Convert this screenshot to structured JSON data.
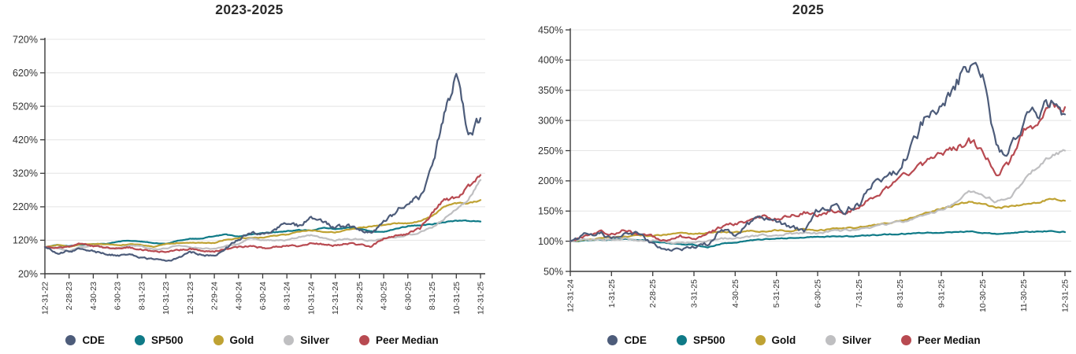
{
  "style": {
    "background": "#ffffff",
    "grid_color": "#e4e4e4",
    "axis_color": "#3a3a3a",
    "tick_text_color": "#333333",
    "title_color": "#2b2b2b",
    "series_colors": {
      "CDE": "#4d5c7a",
      "SP500": "#0f7a87",
      "Gold": "#bfa233",
      "Silver": "#bfbfc1",
      "Peer Median": "#b84a51"
    }
  },
  "chart_data": [
    {
      "type": "line",
      "title": "2023-2025",
      "grid": true,
      "legend_position": "bottom",
      "ylim": [
        20,
        720
      ],
      "y_ticks": [
        20,
        120,
        220,
        320,
        420,
        520,
        620,
        720
      ],
      "y_tick_suffix": "%",
      "x_tick_labels": [
        "12-31-22",
        "2-28-23",
        "4-30-23",
        "6-30-23",
        "8-31-23",
        "10-31-23",
        "12-31-23",
        "2-29-24",
        "4-30-24",
        "6-30-24",
        "8-31-24",
        "10-31-24",
        "12-31-24",
        "2-28-25",
        "4-30-25",
        "6-30-25",
        "8-31-25",
        "10-31-25",
        "12-31-25"
      ],
      "points_interval": "monthly, 12-31-22 through 12-31-25, values are % of 12-31-22 level",
      "series": [
        {
          "name": "CDE",
          "color": "#4d5c7a",
          "values": [
            100,
            80,
            88,
            95,
            88,
            78,
            74,
            77,
            68,
            63,
            58,
            66,
            86,
            76,
            72,
            98,
            122,
            142,
            136,
            152,
            168,
            162,
            185,
            172,
            155,
            164,
            149,
            140,
            174,
            205,
            233,
            251,
            338,
            500,
            610,
            430,
            485
          ]
        },
        {
          "name": "SP500",
          "color": "#0f7a87",
          "values": [
            100,
            106,
            103,
            107,
            109,
            109,
            116,
            119,
            117,
            112,
            109,
            119,
            124,
            126,
            133,
            137,
            131,
            137,
            142,
            144,
            147,
            150,
            149,
            157,
            153,
            157,
            155,
            146,
            145,
            154,
            162,
            165,
            168,
            174,
            178,
            178,
            176
          ]
        },
        {
          "name": "Gold",
          "color": "#bfa233",
          "values": [
            100,
            106,
            100,
            108,
            109,
            108,
            105,
            108,
            106,
            101,
            109,
            112,
            113,
            112,
            112,
            122,
            125,
            128,
            128,
            134,
            137,
            145,
            150,
            145,
            144,
            152,
            157,
            161,
            165,
            170,
            170,
            177,
            191,
            222,
            230,
            230,
            240
          ]
        },
        {
          "name": "Silver",
          "color": "#bfbfc1",
          "values": [
            100,
            99,
            87,
            100,
            104,
            98,
            95,
            104,
            103,
            92,
            95,
            105,
            99,
            96,
            94,
            104,
            109,
            127,
            121,
            120,
            120,
            130,
            136,
            126,
            120,
            123,
            123,
            118,
            127,
            130,
            136,
            144,
            159,
            183,
            214,
            240,
            300
          ]
        },
        {
          "name": "Peer Median",
          "color": "#b84a51",
          "values": [
            100,
            97,
            100,
            110,
            102,
            98,
            95,
            99,
            92,
            88,
            85,
            90,
            95,
            90,
            86,
            95,
            100,
            103,
            96,
            100,
            104,
            102,
            112,
            108,
            104,
            110,
            106,
            102,
            125,
            133,
            140,
            155,
            201,
            240,
            247,
            279,
            315
          ]
        }
      ]
    },
    {
      "type": "line",
      "title": "2025",
      "grid": true,
      "legend_position": "bottom",
      "ylim": [
        50,
        450
      ],
      "y_ticks": [
        50,
        100,
        150,
        200,
        250,
        300,
        350,
        400,
        450
      ],
      "y_tick_suffix": "%",
      "x_tick_labels": [
        "12-31-24",
        "1-31-25",
        "2-28-25",
        "3-31-25",
        "4-30-25",
        "5-31-25",
        "6-30-25",
        "7-31-25",
        "8-31-25",
        "9-31-25",
        "10-30-25",
        "11-30-25",
        "12-31-25"
      ],
      "points_interval": "approx. every 10 days, 12-31-24 through 12-31-25, values are % of 12-31-24 level",
      "series": [
        {
          "name": "CDE",
          "color": "#4d5c7a",
          "values": [
            100,
            110,
            115,
            106,
            110,
            112,
            96,
            88,
            86,
            90,
            95,
            120,
            112,
            130,
            140,
            132,
            124,
            118,
            150,
            158,
            150,
            162,
            200,
            205,
            218,
            270,
            310,
            330,
            355,
            395,
            385,
            248,
            255,
            300,
            312,
            330,
            310
          ]
        },
        {
          "name": "SP500",
          "color": "#0f7a87",
          "values": [
            100,
            101,
            103,
            102,
            104,
            102,
            100,
            97,
            95,
            94,
            90,
            96,
            98,
            101,
            103,
            104,
            105,
            106,
            107,
            108,
            108,
            109,
            110,
            111,
            112,
            113,
            114,
            114,
            115,
            116,
            114,
            112,
            113,
            116,
            116,
            117,
            115
          ]
        },
        {
          "name": "Gold",
          "color": "#bfa233",
          "values": [
            100,
            102,
            104,
            106,
            108,
            110,
            109,
            111,
            113,
            112,
            114,
            116,
            115,
            117,
            116,
            118,
            117,
            119,
            118,
            120,
            121,
            123,
            126,
            130,
            133,
            140,
            148,
            154,
            160,
            165,
            163,
            155,
            157,
            160,
            164,
            171,
            167
          ]
        },
        {
          "name": "Silver",
          "color": "#bfbfc1",
          "values": [
            100,
            102,
            104,
            102,
            104,
            100,
            102,
            98,
            96,
            98,
            100,
            104,
            106,
            108,
            110,
            108,
            112,
            114,
            113,
            116,
            118,
            120,
            124,
            128,
            132,
            138,
            146,
            152,
            162,
            183,
            178,
            165,
            170,
            200,
            225,
            243,
            250
          ]
        },
        {
          "name": "Peer Median",
          "color": "#b84a51",
          "values": [
            100,
            108,
            116,
            112,
            118,
            112,
            108,
            100,
            108,
            104,
            112,
            124,
            128,
            136,
            142,
            136,
            142,
            148,
            143,
            150,
            146,
            158,
            172,
            188,
            205,
            218,
            232,
            245,
            252,
            266,
            252,
            212,
            228,
            285,
            295,
            332,
            322
          ]
        }
      ]
    }
  ]
}
